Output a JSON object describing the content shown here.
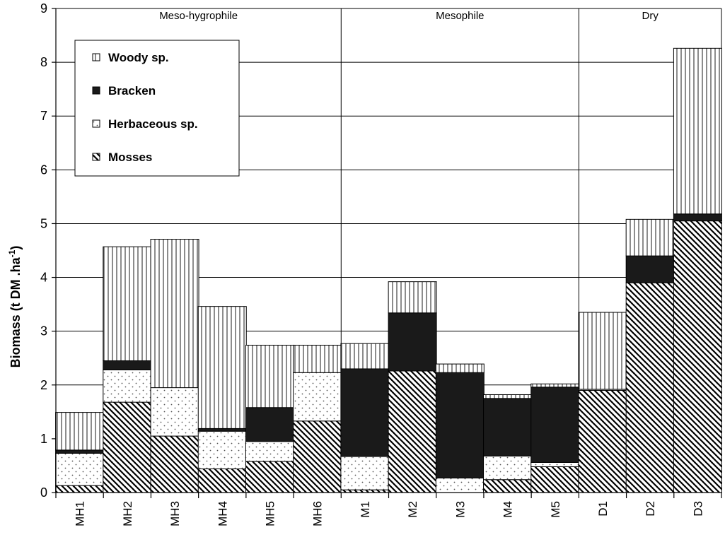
{
  "chart_data": {
    "type": "bar",
    "stacked": true,
    "ylabel": "Biomass (t DM .ha",
    "ylabel_superscript": "-1",
    "ylabel_suffix": ")",
    "ylim": [
      0,
      9
    ],
    "yticks": [
      0,
      1,
      2,
      3,
      4,
      5,
      6,
      7,
      8,
      9
    ],
    "grid": true,
    "legend_position": "top-left",
    "categories": [
      "MH1",
      "MH2",
      "MH3",
      "MH4",
      "MH5",
      "MH6",
      "M1",
      "M2",
      "M3",
      "M4",
      "M5",
      "D1",
      "D2",
      "D3"
    ],
    "groups": [
      {
        "label": "Meso-hygrophile",
        "start": 0,
        "end": 5
      },
      {
        "label": "Mesophile",
        "start": 6,
        "end": 10
      },
      {
        "label": "Dry",
        "start": 11,
        "end": 13
      }
    ],
    "series": [
      {
        "name": "Mosses",
        "pattern": "diagonal",
        "values": [
          0.13,
          1.68,
          1.05,
          0.44,
          0.58,
          1.33,
          0.05,
          2.26,
          0.0,
          0.24,
          0.48,
          1.9,
          3.9,
          5.05
        ]
      },
      {
        "name": "Herbaceous sp.",
        "pattern": "dots",
        "values": [
          0.6,
          0.6,
          0.9,
          0.7,
          0.37,
          0.9,
          0.62,
          0.0,
          0.27,
          0.44,
          0.08,
          0.02,
          0.0,
          0.0
        ]
      },
      {
        "name": "Bracken",
        "pattern": "solid",
        "values": [
          0.06,
          0.17,
          0.0,
          0.05,
          0.63,
          0.0,
          1.63,
          1.08,
          1.96,
          1.07,
          1.4,
          0.0,
          0.5,
          0.13
        ]
      },
      {
        "name": "Woody sp.",
        "pattern": "vertical",
        "values": [
          0.7,
          2.12,
          2.76,
          2.27,
          1.16,
          0.51,
          0.47,
          0.58,
          0.16,
          0.07,
          0.06,
          1.43,
          0.68,
          3.08
        ]
      }
    ],
    "legend_order": [
      "Woody sp.",
      "Bracken",
      "Herbaceous sp.",
      "Mosses"
    ]
  }
}
